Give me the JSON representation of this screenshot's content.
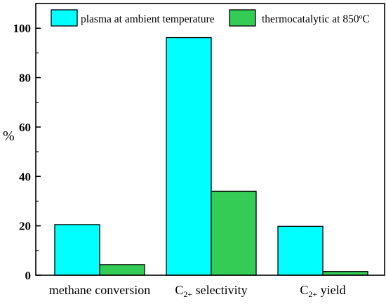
{
  "chart_data": {
    "type": "bar",
    "ylabel": "%",
    "xlabel": "",
    "title": "",
    "ylim": [
      0,
      110
    ],
    "yticks": [
      0,
      20,
      40,
      60,
      80,
      100
    ],
    "grid": false,
    "legend_position": "top",
    "categories": [
      {
        "label": "methane conversion",
        "main": "methane conversion",
        "sub": "",
        "rest": ""
      },
      {
        "label": "C2+ selectivity",
        "main": "C",
        "sub": "2+",
        "rest": " selectivity"
      },
      {
        "label": "C2+ yield",
        "main": "C",
        "sub": "2+",
        "rest": " yield"
      }
    ],
    "series": [
      {
        "name": "plasma at ambient temperature",
        "color": "#00ffff",
        "values": [
          20.5,
          96.2,
          19.8
        ]
      },
      {
        "name": "thermocatalytic at 850ºC",
        "color": "#33cc55",
        "values": [
          4.3,
          34.0,
          1.5
        ]
      }
    ]
  }
}
